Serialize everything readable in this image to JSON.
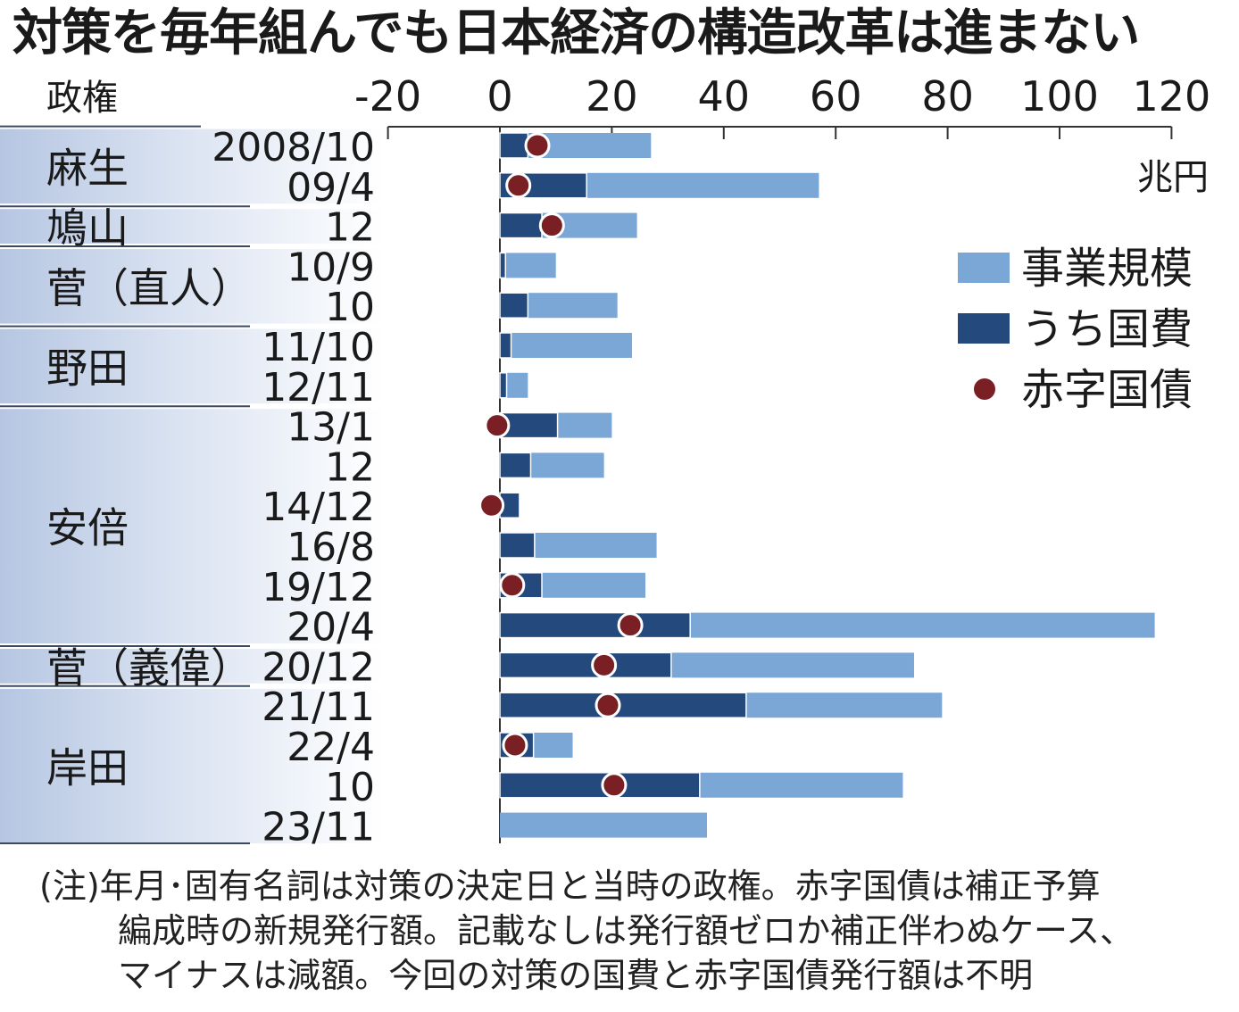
{
  "title": "対策を毎年組んでも日本経済の構造改革は進まない",
  "chart_data": {
    "type": "bar",
    "row_header": "政権",
    "unit": "兆円",
    "xlim": [
      -20,
      120
    ],
    "xticks": [
      -20,
      0,
      20,
      40,
      60,
      80,
      100,
      120
    ],
    "legend": {
      "position": "right",
      "items": [
        {
          "label": "事業規模",
          "color": "#7ba7d6",
          "shape": "bar"
        },
        {
          "label": "うち国費",
          "color": "#24497c",
          "shape": "bar"
        },
        {
          "label": "赤字国債",
          "color": "#7a1f24",
          "shape": "dot"
        }
      ]
    },
    "groups": [
      {
        "name": "麻生",
        "rows": 2
      },
      {
        "name": "鳩山",
        "rows": 1
      },
      {
        "name": "菅（直人）",
        "rows": 2
      },
      {
        "name": "野田",
        "rows": 2
      },
      {
        "name": "安倍",
        "rows": 6
      },
      {
        "name": "菅（義偉）",
        "rows": 1
      },
      {
        "name": "岸田",
        "rows": 4
      }
    ],
    "categories": [
      "2008/10",
      "09/4",
      "12",
      "10/9",
      "10",
      "11/10",
      "12/11",
      "13/1",
      "12",
      "14/12",
      "16/8",
      "19/12",
      "20/4",
      "20/12",
      "21/11",
      "22/4",
      "10",
      "23/11"
    ],
    "series": [
      {
        "name": "事業規模",
        "values": [
          27,
          57,
          24.5,
          10,
          21,
          23.6,
          5,
          20,
          18.6,
          3.5,
          28,
          26,
          117,
          74,
          79,
          13,
          72,
          37
        ]
      },
      {
        "name": "うち国費",
        "values": [
          5,
          15.5,
          7.5,
          1,
          5,
          2,
          1.2,
          10.3,
          5.5,
          3.5,
          6.2,
          7.5,
          34,
          30.6,
          44,
          6,
          35.7,
          null
        ]
      },
      {
        "name": "赤字国債",
        "values": [
          6.7,
          3.3,
          9.3,
          null,
          null,
          null,
          null,
          -0.5,
          null,
          -1.5,
          null,
          2.2,
          23.3,
          18.6,
          19.3,
          2.7,
          20.4,
          null
        ]
      }
    ]
  },
  "note": {
    "line1": "(注)年月･固有名詞は対策の決定日と当時の政権。赤字国債は補正予算",
    "line2": "編成時の新規発行額。記載なしは発行額ゼロか補正伴わぬケース、",
    "line3": "マイナスは減額。今回の対策の国費と赤字国債発行額は不明"
  }
}
